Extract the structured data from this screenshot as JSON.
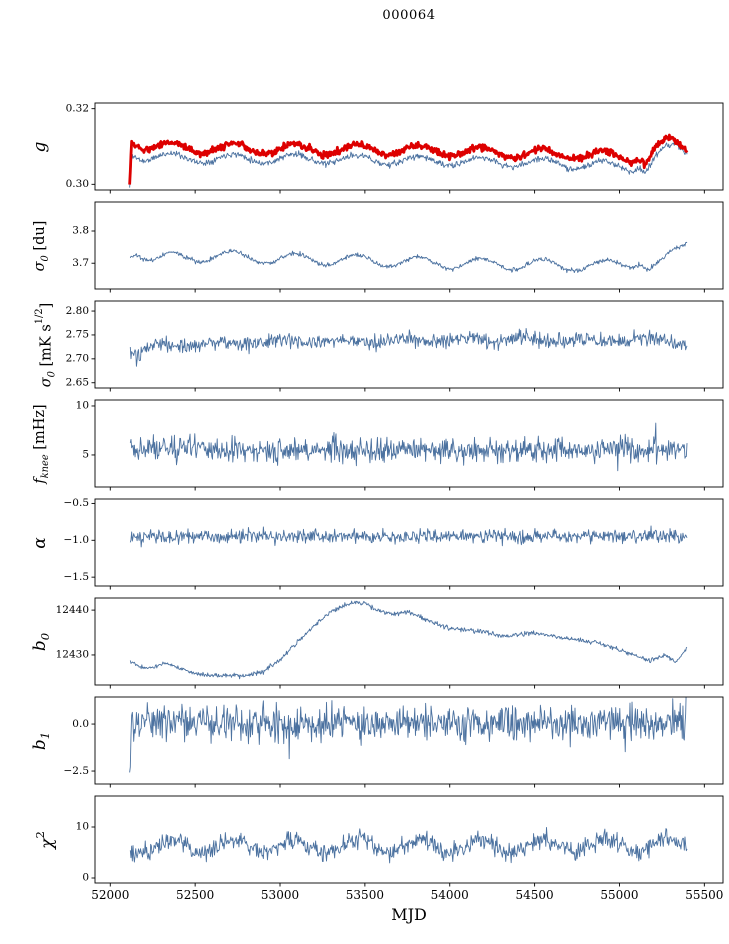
{
  "title": "000064",
  "colors": {
    "line_blue": "#4c72a0",
    "line_red": "#dd0000",
    "axis": "#000000",
    "background": "#ffffff"
  },
  "chart_data": {
    "type": "line",
    "title": "000064",
    "xlabel": "MJD",
    "x": {
      "lim": [
        51910,
        55610
      ],
      "ticks": [
        {
          "v": 52000,
          "label": "52000"
        },
        {
          "v": 52500,
          "label": "52500"
        },
        {
          "v": 53000,
          "label": "53000"
        },
        {
          "v": 53500,
          "label": "53500"
        },
        {
          "v": 54000,
          "label": "54000"
        },
        {
          "v": 54500,
          "label": "54500"
        },
        {
          "v": 55000,
          "label": "55000"
        },
        {
          "v": 55500,
          "label": "55500"
        }
      ]
    },
    "panels": [
      {
        "id": "g",
        "ylabel_parts": [
          {
            "t": "g",
            "style": "i"
          }
        ],
        "ylim": [
          0.2985,
          0.3215
        ],
        "yticks": [
          {
            "v": 0.3,
            "label": "0.30"
          },
          {
            "v": 0.32,
            "label": "0.32"
          }
        ],
        "series": [
          {
            "name": "g-thin-blue",
            "color": "#4c72a0",
            "width": 0.9,
            "seed": 11,
            "xstart": 52114,
            "xend": 55400,
            "step": 4,
            "noise": 0.0008,
            "osc": {
              "amp": 0.0012,
              "period": 365,
              "phase": 52267
            },
            "anchors": [
              [
                52114,
                0.2996
              ],
              [
                52128,
                0.3086
              ],
              [
                52200,
                0.3072
              ],
              [
                52500,
                0.3069
              ],
              [
                53000,
                0.3068
              ],
              [
                53500,
                0.3065
              ],
              [
                54000,
                0.3061
              ],
              [
                54500,
                0.3057
              ],
              [
                54900,
                0.305
              ],
              [
                55060,
                0.3044
              ],
              [
                55120,
                0.3054
              ],
              [
                55150,
                0.3038
              ],
              [
                55220,
                0.3072
              ],
              [
                55320,
                0.31
              ],
              [
                55400,
                0.3086
              ]
            ]
          },
          {
            "name": "g-thick-red",
            "color": "#dd0000",
            "width": 2.8,
            "seed": 5,
            "xstart": 52114,
            "xend": 55400,
            "step": 4,
            "noise": 0.0009,
            "osc": {
              "amp": 0.0013,
              "period": 365,
              "phase": 52267
            },
            "anchors": [
              [
                52114,
                0.3004
              ],
              [
                52126,
                0.312
              ],
              [
                52200,
                0.3102
              ],
              [
                52500,
                0.3096
              ],
              [
                53000,
                0.3094
              ],
              [
                53500,
                0.3092
              ],
              [
                54000,
                0.3088
              ],
              [
                54500,
                0.3082
              ],
              [
                54900,
                0.3076
              ],
              [
                55060,
                0.307
              ],
              [
                55120,
                0.3078
              ],
              [
                55150,
                0.3062
              ],
              [
                55220,
                0.3095
              ],
              [
                55300,
                0.3112
              ],
              [
                55400,
                0.3094
              ]
            ]
          }
        ]
      },
      {
        "id": "sigma0-du",
        "ylabel_parts": [
          {
            "t": "σ",
            "style": "i"
          },
          {
            "t": "0",
            "style": "sub"
          },
          {
            "t": " [du]",
            "style": "n"
          }
        ],
        "ylim": [
          3.62,
          3.89
        ],
        "yticks": [
          {
            "v": 3.7,
            "label": "3.7"
          },
          {
            "v": 3.8,
            "label": "3.8"
          }
        ],
        "series": [
          {
            "name": "sigma0-du",
            "color": "#4c72a0",
            "width": 0.9,
            "seed": 21,
            "xstart": 52118,
            "xend": 55400,
            "step": 4,
            "noise": 0.007,
            "osc": {
              "amp": 0.017,
              "period": 365,
              "phase": 52267
            },
            "anchors": [
              [
                52118,
                3.728
              ],
              [
                52150,
                3.742
              ],
              [
                52260,
                3.712
              ],
              [
                52600,
                3.724
              ],
              [
                53000,
                3.714
              ],
              [
                53500,
                3.708
              ],
              [
                54000,
                3.7
              ],
              [
                54500,
                3.696
              ],
              [
                54900,
                3.691
              ],
              [
                55060,
                3.7
              ],
              [
                55120,
                3.712
              ],
              [
                55170,
                3.684
              ],
              [
                55260,
                3.7
              ],
              [
                55400,
                3.77
              ]
            ]
          }
        ]
      },
      {
        "id": "sigma0-mks",
        "ylabel_parts": [
          {
            "t": "σ",
            "style": "i"
          },
          {
            "t": "0",
            "style": "sub"
          },
          {
            "t": " [mK s",
            "style": "n"
          },
          {
            "t": "1/2",
            "style": "sup"
          },
          {
            "t": "]",
            "style": "n"
          }
        ],
        "ylim": [
          2.639,
          2.821
        ],
        "yticks": [
          {
            "v": 2.65,
            "label": "2.65"
          },
          {
            "v": 2.7,
            "label": "2.70"
          },
          {
            "v": 2.75,
            "label": "2.75"
          },
          {
            "v": 2.8,
            "label": "2.80"
          }
        ],
        "series": [
          {
            "name": "sigma0-mks",
            "color": "#4c72a0",
            "width": 0.9,
            "seed": 31,
            "xstart": 52118,
            "xend": 55400,
            "step": 4,
            "noise": 0.016,
            "osc": {
              "amp": 0.004,
              "period": 365,
              "phase": 52180
            },
            "anchors": [
              [
                52118,
                2.716
              ],
              [
                52160,
                2.702
              ],
              [
                52260,
                2.73
              ],
              [
                53000,
                2.735
              ],
              [
                54000,
                2.739
              ],
              [
                55000,
                2.74
              ],
              [
                55400,
                2.736
              ]
            ]
          }
        ]
      },
      {
        "id": "fknee",
        "ylabel_parts": [
          {
            "t": "f",
            "style": "i"
          },
          {
            "t": "knee",
            "style": "sub"
          },
          {
            "t": " [mHz]",
            "style": "n"
          }
        ],
        "ylim": [
          1.73,
          10.61
        ],
        "yticks": [
          {
            "v": 5,
            "label": "5"
          },
          {
            "v": 10,
            "label": "10"
          }
        ],
        "series": [
          {
            "name": "fknee",
            "color": "#4c72a0",
            "width": 0.9,
            "seed": 41,
            "xstart": 52118,
            "xend": 55400,
            "step": 4,
            "noise": 1.3,
            "spike": {
              "p": 0.04,
              "amp": 1.6
            },
            "anchors": [
              [
                52118,
                5.6
              ],
              [
                52450,
                5.8
              ],
              [
                52700,
                5.45
              ],
              [
                53600,
                5.5
              ],
              [
                54500,
                5.5
              ],
              [
                55400,
                5.6
              ]
            ]
          }
        ]
      },
      {
        "id": "alpha",
        "ylabel_parts": [
          {
            "t": "α",
            "style": "i"
          }
        ],
        "ylim": [
          -1.62,
          -0.44
        ],
        "yticks": [
          {
            "v": -1.5,
            "label": "−1.5"
          },
          {
            "v": -1.0,
            "label": "−1.0"
          },
          {
            "v": -0.5,
            "label": "−0.5"
          }
        ],
        "series": [
          {
            "name": "alpha",
            "color": "#4c72a0",
            "width": 0.9,
            "seed": 51,
            "xstart": 52118,
            "xend": 55400,
            "step": 4,
            "noise": 0.09,
            "spike": {
              "p": 0.03,
              "amp": 0.12
            },
            "anchors": [
              [
                52118,
                -0.95
              ],
              [
                53000,
                -0.945
              ],
              [
                54000,
                -0.95
              ],
              [
                55400,
                -0.94
              ]
            ]
          }
        ]
      },
      {
        "id": "b0",
        "ylabel_parts": [
          {
            "t": "b",
            "style": "i"
          },
          {
            "t": "0",
            "style": "sub"
          }
        ],
        "ylim": [
          12423.3,
          12442.7
        ],
        "yticks": [
          {
            "v": 12430,
            "label": "12430"
          },
          {
            "v": 12440,
            "label": "12440"
          }
        ],
        "series": [
          {
            "name": "b0",
            "color": "#4c72a0",
            "width": 0.9,
            "seed": 61,
            "xstart": 52118,
            "xend": 55400,
            "step": 4,
            "noise": 0.5,
            "osc": {
              "amp": 0.25,
              "period": 365,
              "phase": 52267
            },
            "anchors": [
              [
                52118,
                12428.6
              ],
              [
                52200,
                12427.2
              ],
              [
                52320,
                12427.8
              ],
              [
                52480,
                12426.2
              ],
              [
                52620,
                12425.4
              ],
              [
                52780,
                12425.1
              ],
              [
                52900,
                12426.5
              ],
              [
                53000,
                12429.0
              ],
              [
                53100,
                12432.5
              ],
              [
                53200,
                12436.5
              ],
              [
                53300,
                12440.0
              ],
              [
                53400,
                12441.2
              ],
              [
                53500,
                12441.4
              ],
              [
                53560,
                12440.2
              ],
              [
                53650,
                12439.3
              ],
              [
                53750,
                12439.6
              ],
              [
                53850,
                12437.8
              ],
              [
                54000,
                12436.2
              ],
              [
                54150,
                12435.2
              ],
              [
                54300,
                12434.4
              ],
              [
                54450,
                12434.8
              ],
              [
                54600,
                12434.2
              ],
              [
                54750,
                12433.6
              ],
              [
                54900,
                12432.2
              ],
              [
                55000,
                12431.0
              ],
              [
                55100,
                12430.2
              ],
              [
                55180,
                12428.8
              ],
              [
                55260,
                12429.6
              ],
              [
                55330,
                12428.4
              ],
              [
                55400,
                12431.6
              ]
            ]
          }
        ]
      },
      {
        "id": "b1",
        "ylabel_parts": [
          {
            "t": "b",
            "style": "i"
          },
          {
            "t": "1",
            "style": "sub"
          }
        ],
        "ylim": [
          -3.19,
          1.44
        ],
        "yticks": [
          {
            "v": -2.5,
            "label": "−2.5"
          },
          {
            "v": 0.0,
            "label": "0.0"
          }
        ],
        "series": [
          {
            "name": "b1",
            "color": "#4c72a0",
            "width": 0.9,
            "seed": 71,
            "xstart": 52114,
            "xend": 55400,
            "step": 4,
            "noise": 0.9,
            "spike": {
              "p": 0.03,
              "amp": 1.1
            },
            "anchors": [
              [
                52114,
                -2.6
              ],
              [
                52126,
                0.1
              ],
              [
                53000,
                0.05
              ],
              [
                54000,
                0.05
              ],
              [
                55385,
                0.05
              ],
              [
                55395,
                1.35
              ]
            ]
          }
        ]
      },
      {
        "id": "chi2",
        "ylabel_parts": [
          {
            "t": "χ",
            "style": "i"
          },
          {
            "t": "2",
            "style": "sup"
          }
        ],
        "ylim": [
          -0.98,
          16.08
        ],
        "yticks": [
          {
            "v": 0,
            "label": "0"
          },
          {
            "v": 10,
            "label": "10"
          }
        ],
        "series": [
          {
            "name": "chi2",
            "color": "#4c72a0",
            "width": 0.9,
            "seed": 81,
            "xstart": 52118,
            "xend": 55400,
            "step": 4,
            "noise": 1.8,
            "osc": {
              "amp": 1.3,
              "period": 365,
              "phase": 52267
            },
            "anchors": [
              [
                52118,
                6.1
              ],
              [
                53000,
                6.3
              ],
              [
                54000,
                6.2
              ],
              [
                55000,
                6.3
              ],
              [
                55400,
                6.6
              ]
            ]
          }
        ]
      }
    ]
  }
}
